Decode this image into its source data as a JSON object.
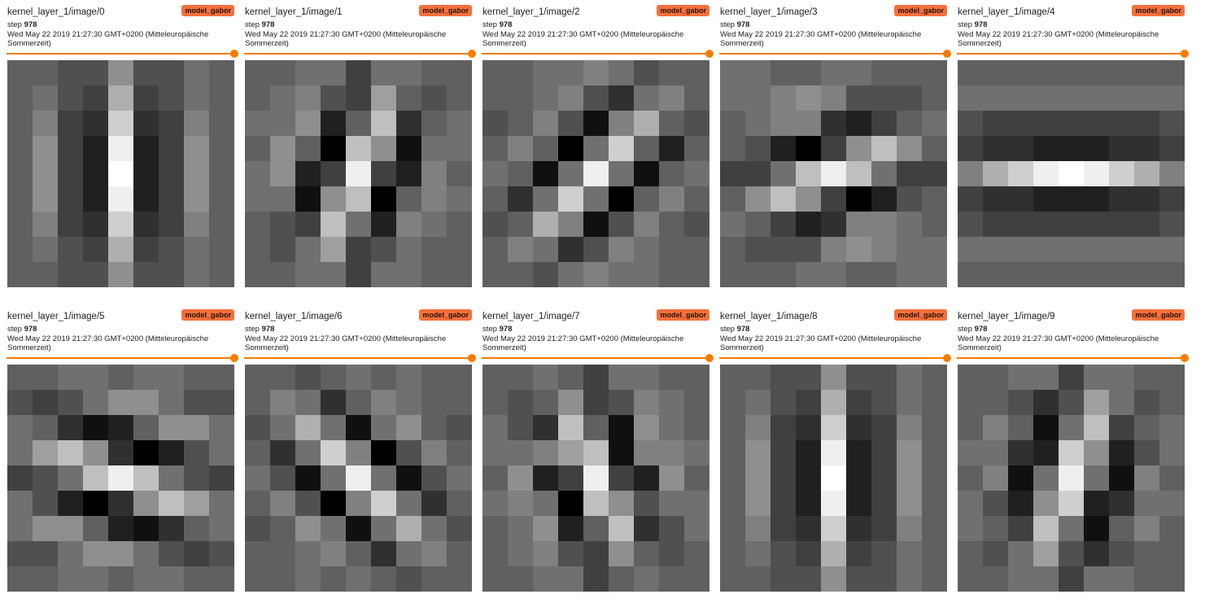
{
  "accent_color": "#f57c00",
  "badge_color": "#f4703c",
  "cards": [
    {
      "title": "kernel_layer_1/image/0",
      "run": "model_gabor",
      "step_label": "step",
      "step": "978",
      "timestamp": "Wed May 22 2019 21:27:30 GMT+0200 (Mitteleuropäische Sommerzeit)",
      "slider_value": 1.0,
      "kernel": [
        [
          6,
          6,
          5,
          5,
          9,
          5,
          5,
          7,
          6
        ],
        [
          6,
          7,
          5,
          4,
          11,
          4,
          5,
          7,
          6
        ],
        [
          6,
          8,
          4,
          3,
          13,
          3,
          4,
          8,
          6
        ],
        [
          6,
          9,
          4,
          2,
          15,
          2,
          4,
          9,
          6
        ],
        [
          6,
          9,
          4,
          2,
          16,
          2,
          4,
          9,
          6
        ],
        [
          6,
          9,
          4,
          2,
          15,
          2,
          4,
          9,
          6
        ],
        [
          6,
          8,
          4,
          3,
          13,
          3,
          4,
          8,
          6
        ],
        [
          6,
          7,
          5,
          4,
          11,
          4,
          5,
          7,
          6
        ],
        [
          6,
          6,
          5,
          5,
          9,
          5,
          5,
          7,
          6
        ]
      ]
    },
    {
      "title": "kernel_layer_1/image/1",
      "run": "model_gabor",
      "step_label": "step",
      "step": "978",
      "timestamp": "Wed May 22 2019 21:27:30 GMT+0200 (Mitteleuropäische Sommerzeit)",
      "slider_value": 1.0,
      "kernel": [
        [
          6,
          6,
          7,
          7,
          4,
          7,
          7,
          6,
          6
        ],
        [
          6,
          7,
          8,
          5,
          4,
          10,
          6,
          5,
          6
        ],
        [
          7,
          7,
          9,
          2,
          6,
          12,
          3,
          6,
          7
        ],
        [
          6,
          9,
          6,
          0,
          12,
          9,
          1,
          7,
          7
        ],
        [
          7,
          9,
          2,
          4,
          15,
          4,
          2,
          8,
          6
        ],
        [
          7,
          7,
          1,
          9,
          12,
          0,
          6,
          8,
          7
        ],
        [
          6,
          5,
          4,
          12,
          7,
          2,
          8,
          7,
          6
        ],
        [
          6,
          5,
          7,
          10,
          4,
          5,
          7,
          6,
          6
        ],
        [
          6,
          6,
          7,
          7,
          4,
          7,
          7,
          6,
          6
        ]
      ]
    },
    {
      "title": "kernel_layer_1/image/2",
      "run": "model_gabor",
      "step_label": "step",
      "step": "978",
      "timestamp": "Wed May 22 2019 21:27:30 GMT+0200 (Mitteleuropäische Sommerzeit)",
      "slider_value": 1.0,
      "kernel": [
        [
          6,
          6,
          7,
          7,
          8,
          7,
          5,
          6,
          6
        ],
        [
          6,
          6,
          7,
          8,
          5,
          3,
          7,
          8,
          6
        ],
        [
          5,
          6,
          8,
          5,
          1,
          8,
          11,
          6,
          5
        ],
        [
          6,
          8,
          6,
          0,
          7,
          13,
          6,
          2,
          6
        ],
        [
          7,
          6,
          1,
          7,
          15,
          7,
          1,
          6,
          7
        ],
        [
          6,
          3,
          7,
          13,
          7,
          0,
          6,
          8,
          6
        ],
        [
          5,
          6,
          11,
          8,
          1,
          5,
          8,
          6,
          5
        ],
        [
          6,
          8,
          7,
          3,
          5,
          8,
          7,
          6,
          6
        ],
        [
          6,
          6,
          5,
          7,
          8,
          7,
          7,
          6,
          6
        ]
      ]
    },
    {
      "title": "kernel_layer_1/image/3",
      "run": "model_gabor",
      "step_label": "step",
      "step": "978",
      "timestamp": "Wed May 22 2019 21:27:30 GMT+0200 (Mitteleuropäische Sommerzeit)",
      "slider_value": 1.0,
      "kernel": [
        [
          7,
          7,
          6,
          6,
          7,
          7,
          6,
          6,
          6
        ],
        [
          7,
          7,
          8,
          9,
          8,
          5,
          5,
          5,
          6
        ],
        [
          6,
          7,
          8,
          8,
          3,
          2,
          4,
          6,
          7
        ],
        [
          6,
          5,
          2,
          0,
          4,
          9,
          12,
          9,
          6
        ],
        [
          4,
          4,
          7,
          12,
          15,
          12,
          7,
          4,
          4
        ],
        [
          6,
          9,
          12,
          9,
          4,
          0,
          2,
          5,
          6
        ],
        [
          7,
          6,
          4,
          2,
          3,
          8,
          8,
          7,
          6
        ],
        [
          6,
          5,
          5,
          5,
          8,
          9,
          8,
          7,
          7
        ],
        [
          6,
          6,
          6,
          7,
          7,
          6,
          6,
          7,
          7
        ]
      ]
    },
    {
      "title": "kernel_layer_1/image/4",
      "run": "model_gabor",
      "step_label": "step",
      "step": "978",
      "timestamp": "Wed May 22 2019 21:27:30 GMT+0200 (Mitteleuropäische Sommerzeit)",
      "slider_value": 1.0,
      "kernel": [
        [
          6,
          6,
          6,
          6,
          6,
          6,
          6,
          6,
          6
        ],
        [
          7,
          7,
          7,
          7,
          7,
          7,
          7,
          7,
          7
        ],
        [
          5,
          4,
          4,
          4,
          4,
          4,
          4,
          4,
          5
        ],
        [
          4,
          3,
          3,
          2,
          2,
          2,
          3,
          3,
          4
        ],
        [
          8,
          11,
          13,
          15,
          16,
          15,
          13,
          11,
          8
        ],
        [
          4,
          3,
          3,
          2,
          2,
          2,
          3,
          3,
          4
        ],
        [
          5,
          4,
          4,
          4,
          4,
          4,
          4,
          4,
          5
        ],
        [
          7,
          7,
          7,
          7,
          7,
          7,
          7,
          7,
          7
        ],
        [
          6,
          6,
          6,
          6,
          6,
          6,
          6,
          6,
          6
        ]
      ]
    },
    {
      "title": "kernel_layer_1/image/5",
      "run": "model_gabor",
      "step_label": "step",
      "step": "978",
      "timestamp": "Wed May 22 2019 21:27:30 GMT+0200 (Mitteleuropäische Sommerzeit)",
      "slider_value": 1.0,
      "kernel": [
        [
          6,
          6,
          7,
          7,
          6,
          7,
          7,
          6,
          6
        ],
        [
          5,
          4,
          5,
          7,
          9,
          9,
          7,
          5,
          5
        ],
        [
          7,
          6,
          3,
          1,
          2,
          6,
          9,
          9,
          7
        ],
        [
          7,
          10,
          12,
          9,
          3,
          0,
          2,
          5,
          7
        ],
        [
          4,
          5,
          7,
          12,
          15,
          12,
          7,
          5,
          4
        ],
        [
          7,
          5,
          2,
          0,
          3,
          9,
          12,
          10,
          7
        ],
        [
          7,
          9,
          9,
          6,
          2,
          1,
          3,
          6,
          7
        ],
        [
          5,
          5,
          7,
          9,
          9,
          7,
          5,
          4,
          5
        ],
        [
          6,
          6,
          7,
          7,
          6,
          7,
          7,
          6,
          6
        ]
      ]
    },
    {
      "title": "kernel_layer_1/image/6",
      "run": "model_gabor",
      "step_label": "step",
      "step": "978",
      "timestamp": "Wed May 22 2019 21:27:30 GMT+0200 (Mitteleuropäische Sommerzeit)",
      "slider_value": 1.0,
      "kernel": [
        [
          6,
          6,
          5,
          6,
          7,
          6,
          7,
          6,
          6
        ],
        [
          6,
          8,
          7,
          3,
          6,
          8,
          7,
          6,
          6
        ],
        [
          5,
          7,
          11,
          7,
          1,
          7,
          9,
          6,
          5
        ],
        [
          6,
          3,
          7,
          13,
          8,
          0,
          5,
          8,
          6
        ],
        [
          7,
          5,
          1,
          7,
          15,
          7,
          1,
          5,
          7
        ],
        [
          6,
          8,
          5,
          0,
          8,
          13,
          7,
          3,
          6
        ],
        [
          5,
          6,
          9,
          7,
          1,
          7,
          11,
          7,
          5
        ],
        [
          6,
          6,
          7,
          8,
          6,
          3,
          7,
          8,
          6
        ],
        [
          6,
          6,
          7,
          6,
          7,
          6,
          5,
          6,
          6
        ]
      ]
    },
    {
      "title": "kernel_layer_1/image/7",
      "run": "model_gabor",
      "step_label": "step",
      "step": "978",
      "timestamp": "Wed May 22 2019 21:27:30 GMT+0200 (Mitteleuropäische Sommerzeit)",
      "slider_value": 1.0,
      "kernel": [
        [
          6,
          6,
          7,
          6,
          4,
          7,
          7,
          6,
          6
        ],
        [
          6,
          5,
          6,
          9,
          4,
          5,
          8,
          7,
          6
        ],
        [
          7,
          5,
          3,
          12,
          6,
          1,
          9,
          7,
          6
        ],
        [
          7,
          7,
          8,
          10,
          12,
          1,
          8,
          8,
          7
        ],
        [
          6,
          9,
          2,
          4,
          15,
          4,
          2,
          9,
          6
        ],
        [
          7,
          8,
          7,
          0,
          12,
          9,
          5,
          7,
          7
        ],
        [
          6,
          7,
          9,
          2,
          6,
          12,
          3,
          5,
          7
        ],
        [
          6,
          7,
          8,
          5,
          4,
          9,
          6,
          5,
          6
        ],
        [
          6,
          6,
          7,
          7,
          4,
          6,
          7,
          6,
          6
        ]
      ]
    },
    {
      "title": "kernel_layer_1/image/8",
      "run": "model_gabor",
      "step_label": "step",
      "step": "978",
      "timestamp": "Wed May 22 2019 21:27:30 GMT+0200 (Mitteleuropäische Sommerzeit)",
      "slider_value": 1.0,
      "kernel": [
        [
          6,
          6,
          5,
          5,
          9,
          5,
          5,
          7,
          6
        ],
        [
          6,
          7,
          5,
          4,
          11,
          4,
          5,
          7,
          6
        ],
        [
          6,
          8,
          4,
          3,
          13,
          3,
          4,
          8,
          6
        ],
        [
          6,
          9,
          4,
          2,
          15,
          2,
          4,
          9,
          6
        ],
        [
          6,
          9,
          4,
          2,
          16,
          2,
          4,
          9,
          6
        ],
        [
          6,
          9,
          4,
          2,
          15,
          2,
          4,
          9,
          6
        ],
        [
          6,
          8,
          4,
          3,
          13,
          3,
          4,
          8,
          6
        ],
        [
          6,
          7,
          5,
          4,
          11,
          4,
          5,
          7,
          6
        ],
        [
          6,
          6,
          5,
          5,
          9,
          5,
          5,
          7,
          6
        ]
      ]
    },
    {
      "title": "kernel_layer_1/image/9",
      "run": "model_gabor",
      "step_label": "step",
      "step": "978",
      "timestamp": "Wed May 22 2019 21:27:30 GMT+0200 (Mitteleuropäische Sommerzeit)",
      "slider_value": 1.0,
      "kernel": [
        [
          6,
          6,
          7,
          7,
          4,
          7,
          7,
          6,
          6
        ],
        [
          6,
          6,
          5,
          3,
          5,
          10,
          7,
          5,
          6
        ],
        [
          6,
          8,
          6,
          1,
          7,
          12,
          4,
          6,
          7
        ],
        [
          7,
          7,
          3,
          2,
          13,
          9,
          2,
          5,
          7
        ],
        [
          6,
          8,
          1,
          7,
          15,
          7,
          1,
          8,
          6
        ],
        [
          7,
          5,
          2,
          9,
          13,
          2,
          3,
          7,
          7
        ],
        [
          7,
          6,
          4,
          12,
          7,
          1,
          6,
          8,
          6
        ],
        [
          6,
          5,
          7,
          10,
          5,
          3,
          5,
          6,
          6
        ],
        [
          6,
          6,
          7,
          7,
          4,
          7,
          7,
          6,
          6
        ]
      ]
    }
  ]
}
